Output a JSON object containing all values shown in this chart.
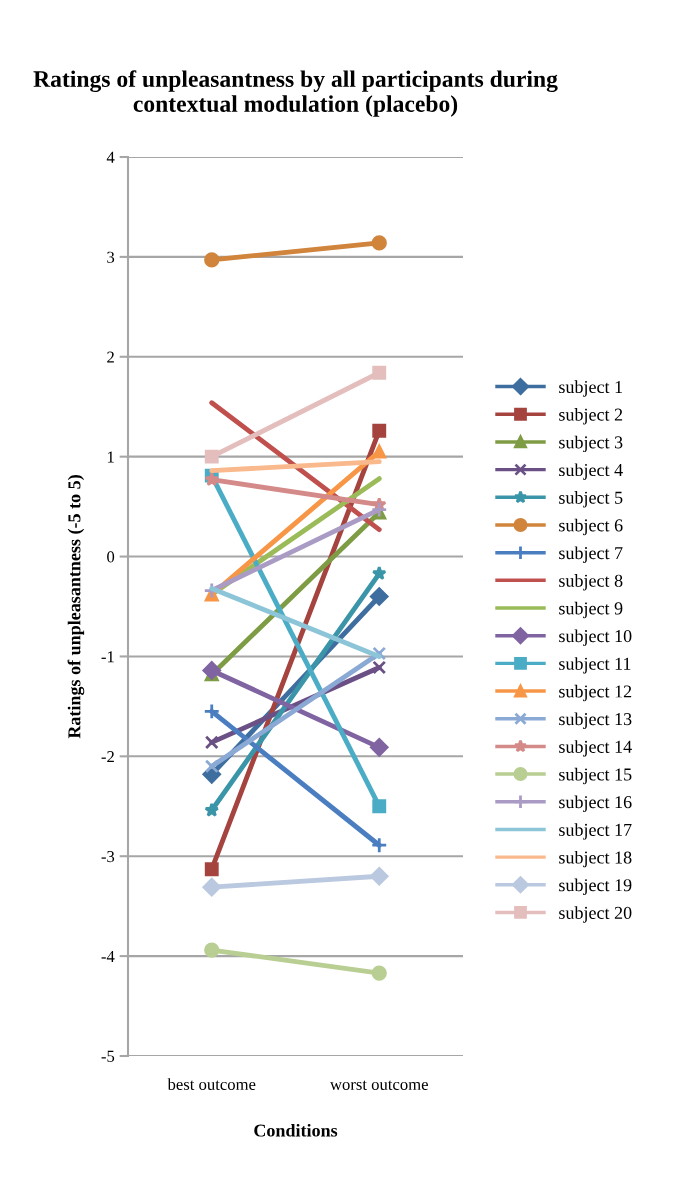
{
  "chart_data": {
    "type": "line",
    "title": "Ratings of unpleasantness by all participants during contextual modulation (placebo)",
    "xlabel": "Conditions",
    "ylabel": "Ratings of unpleasantness (-5 to 5)",
    "categories": [
      "best outcome",
      "worst outcome"
    ],
    "ylim": [
      -5,
      4
    ],
    "yticks": [
      -5,
      -4,
      -3,
      -2,
      -1,
      0,
      1,
      2,
      3,
      4
    ],
    "grid": "y",
    "legend": "right",
    "series": [
      {
        "name": "subject 1",
        "color": "#3e6d9f",
        "marker": "diamond",
        "values": [
          -2.18,
          -0.4
        ]
      },
      {
        "name": "subject 2",
        "color": "#a5433f",
        "marker": "square",
        "values": [
          -3.13,
          1.26
        ]
      },
      {
        "name": "subject 3",
        "color": "#7e9c44",
        "marker": "triangle",
        "values": [
          -1.18,
          0.44
        ]
      },
      {
        "name": "subject 4",
        "color": "#6b5086",
        "marker": "cross",
        "values": [
          -1.86,
          -1.11
        ]
      },
      {
        "name": "subject 5",
        "color": "#3a95a8",
        "marker": "star",
        "values": [
          -2.54,
          -0.17
        ]
      },
      {
        "name": "subject 6",
        "color": "#d0843c",
        "marker": "circle",
        "values": [
          2.97,
          3.14
        ]
      },
      {
        "name": "subject 7",
        "color": "#4a7ec0",
        "marker": "plus",
        "values": [
          -1.55,
          -2.89
        ]
      },
      {
        "name": "subject 8",
        "color": "#c0504d",
        "marker": "none",
        "values": [
          1.54,
          0.27
        ]
      },
      {
        "name": "subject 9",
        "color": "#9bbb59",
        "marker": "none",
        "values": [
          -0.38,
          0.78
        ]
      },
      {
        "name": "subject 10",
        "color": "#8064a2",
        "marker": "diamond",
        "values": [
          -1.14,
          -1.91
        ]
      },
      {
        "name": "subject 11",
        "color": "#4bacc6",
        "marker": "square",
        "values": [
          0.81,
          -2.5
        ]
      },
      {
        "name": "subject 12",
        "color": "#f79646",
        "marker": "triangle",
        "values": [
          -0.38,
          1.05
        ]
      },
      {
        "name": "subject 13",
        "color": "#8aa9d4",
        "marker": "cross",
        "values": [
          -2.1,
          -0.97
        ]
      },
      {
        "name": "subject 14",
        "color": "#d48a88",
        "marker": "star",
        "values": [
          0.77,
          0.52
        ]
      },
      {
        "name": "subject 15",
        "color": "#b8ce92",
        "marker": "circle",
        "values": [
          -3.94,
          -4.17
        ]
      },
      {
        "name": "subject 16",
        "color": "#a99bc4",
        "marker": "plus",
        "values": [
          -0.34,
          0.47
        ]
      },
      {
        "name": "subject 17",
        "color": "#8cc5d8",
        "marker": "none",
        "values": [
          -0.32,
          -1.0
        ]
      },
      {
        "name": "subject 18",
        "color": "#f9b98c",
        "marker": "none",
        "values": [
          0.86,
          0.95
        ]
      },
      {
        "name": "subject 19",
        "color": "#bac9e0",
        "marker": "diamond",
        "values": [
          -3.31,
          -3.2
        ]
      },
      {
        "name": "subject 20",
        "color": "#e3bebd",
        "marker": "square",
        "values": [
          1.0,
          1.84
        ]
      }
    ]
  }
}
